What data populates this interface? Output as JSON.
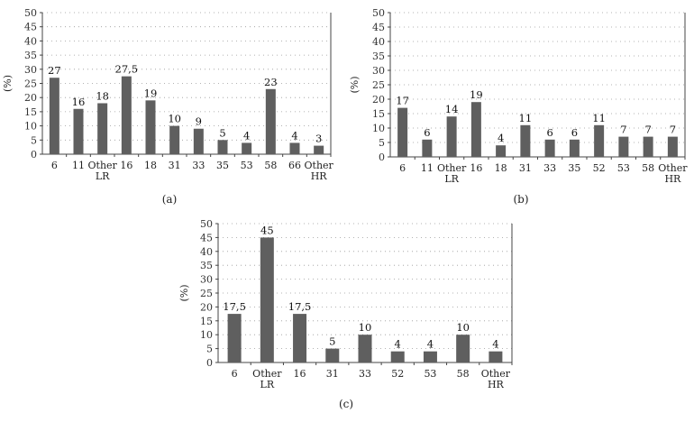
{
  "figure": {
    "bar_color": "#5f5f5f"
  },
  "chart_data": [
    {
      "id": "a",
      "type": "bar",
      "panel_label": "(a)",
      "ylabel": "(%)",
      "ylim": [
        0,
        50
      ],
      "yticks": [
        0,
        5,
        10,
        15,
        20,
        25,
        30,
        35,
        40,
        45,
        50
      ],
      "grid": true,
      "categories": [
        "6",
        "11",
        "Other LR",
        "16",
        "18",
        "31",
        "33",
        "35",
        "53",
        "58",
        "66",
        "Other HR"
      ],
      "category_lines": [
        [
          "6"
        ],
        [
          "11"
        ],
        [
          "Other",
          "LR"
        ],
        [
          "16"
        ],
        [
          "18"
        ],
        [
          "31"
        ],
        [
          "33"
        ],
        [
          "35"
        ],
        [
          "53"
        ],
        [
          "58"
        ],
        [
          "66"
        ],
        [
          "Other",
          "HR"
        ]
      ],
      "values": [
        27,
        16,
        18,
        27.5,
        19,
        10,
        9,
        5,
        4,
        23,
        4,
        3
      ],
      "data_labels": [
        "27",
        "16",
        "18",
        "27,5",
        "19",
        "10",
        "9",
        "5",
        "4",
        "23",
        "4",
        "3"
      ]
    },
    {
      "id": "b",
      "type": "bar",
      "panel_label": "(b)",
      "ylabel": "(%)",
      "ylim": [
        0,
        50
      ],
      "yticks": [
        0,
        5,
        10,
        15,
        20,
        25,
        30,
        35,
        40,
        45,
        50
      ],
      "grid": true,
      "categories": [
        "6",
        "11",
        "Other LR",
        "16",
        "18",
        "31",
        "33",
        "35",
        "52",
        "53",
        "58",
        "Other HR"
      ],
      "category_lines": [
        [
          "6"
        ],
        [
          "11"
        ],
        [
          "Other",
          "LR"
        ],
        [
          "16"
        ],
        [
          "18"
        ],
        [
          "31"
        ],
        [
          "33"
        ],
        [
          "35"
        ],
        [
          "52"
        ],
        [
          "53"
        ],
        [
          "58"
        ],
        [
          "Other",
          "HR"
        ]
      ],
      "values": [
        17,
        6,
        14,
        19,
        4,
        11,
        6,
        6,
        11,
        7,
        7,
        7
      ],
      "data_labels": [
        "17",
        "6",
        "14",
        "19",
        "4",
        "11",
        "6",
        "6",
        "11",
        "7",
        "7",
        "7"
      ]
    },
    {
      "id": "c",
      "type": "bar",
      "panel_label": "(c)",
      "ylabel": "(%)",
      "ylim": [
        0,
        50
      ],
      "yticks": [
        0,
        5,
        10,
        15,
        20,
        25,
        30,
        35,
        40,
        45,
        50
      ],
      "grid": true,
      "categories": [
        "6",
        "Other LR",
        "16",
        "31",
        "33",
        "52",
        "53",
        "58",
        "Other HR"
      ],
      "category_lines": [
        [
          "6"
        ],
        [
          "Other",
          "LR"
        ],
        [
          "16"
        ],
        [
          "31"
        ],
        [
          "33"
        ],
        [
          "52"
        ],
        [
          "53"
        ],
        [
          "58"
        ],
        [
          "Other",
          "HR"
        ]
      ],
      "values": [
        17.5,
        45,
        17.5,
        5,
        10,
        4,
        4,
        10,
        4
      ],
      "data_labels": [
        "17,5",
        "45",
        "17,5",
        "5",
        "10",
        "4",
        "4",
        "10",
        "4"
      ]
    }
  ]
}
